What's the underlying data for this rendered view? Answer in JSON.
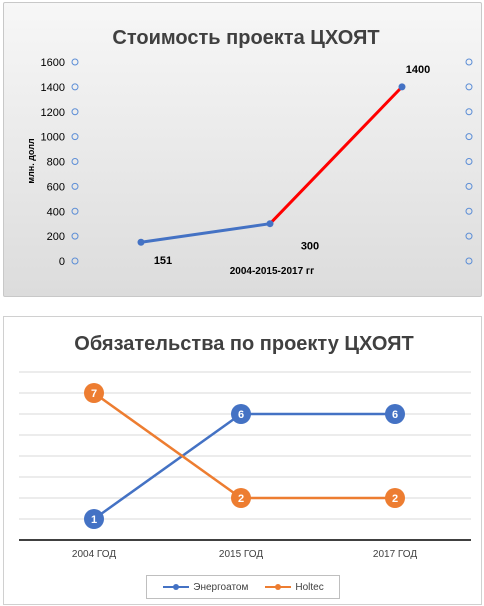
{
  "chart_data": [
    {
      "type": "line",
      "title": "Стоимость проекта ЦХОЯТ",
      "ylabel": "млн. долл",
      "xlabel": "2004-2015-2017 гг",
      "ylim": [
        0,
        1600
      ],
      "y_ticks": [
        "0",
        "200",
        "400",
        "600",
        "800",
        "1000",
        "1200",
        "1400",
        "1600"
      ],
      "grid": false,
      "legend": "none",
      "points": [
        {
          "x": "2004",
          "y": 151,
          "label": "151"
        },
        {
          "x": "2015",
          "y": 300,
          "label": "300"
        },
        {
          "x": "2017",
          "y": 1400,
          "label": "1400"
        }
      ],
      "colors": {
        "early_segment": "#4472c4",
        "late_segment": "#ff0000"
      }
    },
    {
      "type": "line",
      "title": "Обязательства по проекту ЦХОЯТ",
      "categories": [
        "2004 ГОД",
        "2015 ГОД",
        "2017 ГОД"
      ],
      "ylim": [
        0,
        8
      ],
      "grid": true,
      "legend": "bottom",
      "series": [
        {
          "name": "Энергоатом",
          "values": [
            1,
            6,
            6
          ],
          "color": "#4472c4"
        },
        {
          "name": "Holtec",
          "values": [
            7,
            2,
            2
          ],
          "color": "#ed7d31"
        }
      ]
    }
  ]
}
